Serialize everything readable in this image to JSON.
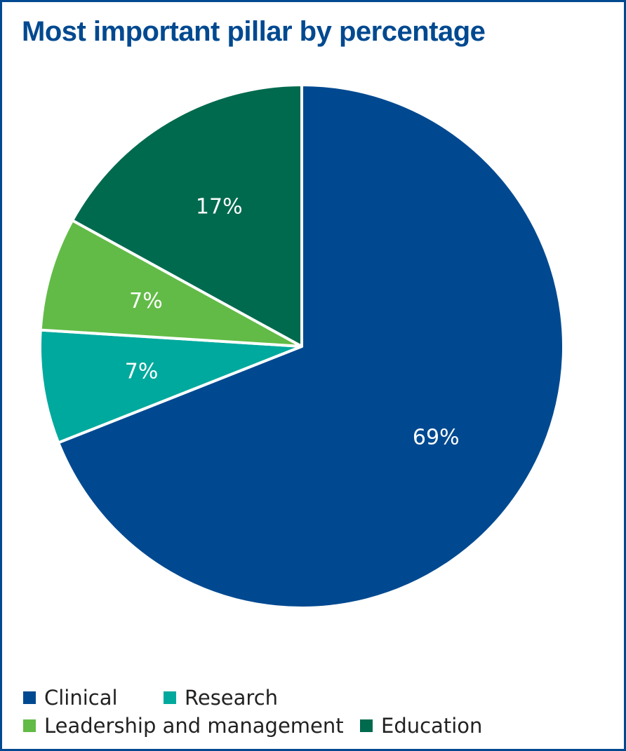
{
  "chart_data": {
    "type": "pie",
    "title": "Most important pillar by percentage",
    "categories": [
      "Clinical",
      "Research",
      "Leadership and management",
      "Education"
    ],
    "values": [
      69,
      7,
      7,
      17
    ],
    "labels": [
      "69%",
      "7%",
      "7%",
      "17%"
    ],
    "colors": [
      "#004990",
      "#00a99d",
      "#62bb46",
      "#006a4e"
    ],
    "legend_position": "bottom"
  }
}
